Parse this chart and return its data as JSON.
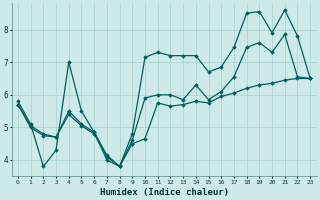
{
  "xlabel": "Humidex (Indice chaleur)",
  "background_color": "#ceeae8",
  "grid_color": "#aed4d0",
  "line_color": "#006060",
  "xlim": [
    -0.5,
    23.5
  ],
  "ylim": [
    3.5,
    8.8
  ],
  "yticks": [
    4,
    5,
    6,
    7,
    8
  ],
  "xticks": [
    0,
    1,
    2,
    3,
    4,
    5,
    6,
    7,
    8,
    9,
    10,
    11,
    12,
    13,
    14,
    15,
    16,
    17,
    18,
    19,
    20,
    21,
    22,
    23
  ],
  "line1_x": [
    0,
    1,
    2,
    3,
    4,
    5,
    6,
    7,
    8,
    9,
    10,
    11,
    12,
    13,
    14,
    15,
    16,
    17,
    18,
    19,
    20,
    21,
    22,
    23
  ],
  "line1_y": [
    5.8,
    5.1,
    3.8,
    4.3,
    7.0,
    5.5,
    4.85,
    4.0,
    3.8,
    4.8,
    7.15,
    7.3,
    7.2,
    7.2,
    7.2,
    6.7,
    6.85,
    7.45,
    8.5,
    8.55,
    7.9,
    8.6,
    7.8,
    6.5
  ],
  "line2_x": [
    0,
    1,
    2,
    3,
    4,
    5,
    6,
    7,
    8,
    9,
    10,
    11,
    12,
    13,
    14,
    15,
    16,
    17,
    18,
    19,
    20,
    21,
    22,
    23
  ],
  "line2_y": [
    5.7,
    5.05,
    4.8,
    4.7,
    5.5,
    5.1,
    4.85,
    4.15,
    3.8,
    4.6,
    5.9,
    6.0,
    6.0,
    5.85,
    6.3,
    5.85,
    6.1,
    6.55,
    7.45,
    7.6,
    7.3,
    7.85,
    6.55,
    6.5
  ],
  "line3_x": [
    0,
    1,
    2,
    3,
    4,
    5,
    6,
    7,
    8,
    9,
    10,
    11,
    12,
    13,
    14,
    15,
    16,
    17,
    18,
    19,
    20,
    21,
    22,
    23
  ],
  "line3_y": [
    5.7,
    5.0,
    4.75,
    4.7,
    5.4,
    5.05,
    4.8,
    4.1,
    3.8,
    4.5,
    4.65,
    5.75,
    5.65,
    5.7,
    5.8,
    5.75,
    5.95,
    6.05,
    6.2,
    6.3,
    6.35,
    6.45,
    6.5,
    6.5
  ]
}
